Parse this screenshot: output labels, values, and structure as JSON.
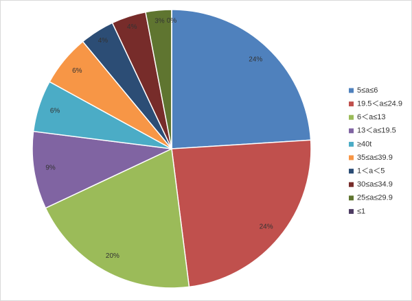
{
  "chart_data": {
    "type": "pie",
    "categories": [
      "5≤a≤6",
      "19.5＜a≤24.9",
      "6＜a≤13",
      "13＜a≤19.5",
      "≥40t",
      "35≤a≤39.9",
      "1＜a＜5",
      "30≤a≤34.9",
      "25≤a≤29.9",
      "≤1"
    ],
    "values": [
      24,
      24,
      20,
      9,
      6,
      6,
      4,
      4,
      3,
      0
    ],
    "value_labels": [
      "24%",
      "24%",
      "20%",
      "9%",
      "6%",
      "6%",
      "4%",
      "4%",
      "3%",
      "0%"
    ],
    "colors": [
      "#4f81bd",
      "#c0504d",
      "#9bbb59",
      "#8064a2",
      "#4bacc6",
      "#f79646",
      "#2c4d75",
      "#772c2a",
      "#5f7530",
      "#4d3b62"
    ],
    "legend": "right"
  }
}
